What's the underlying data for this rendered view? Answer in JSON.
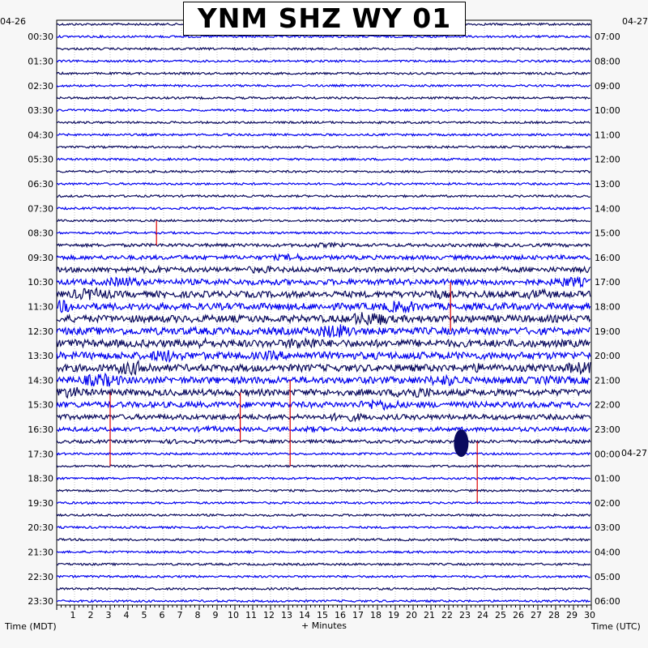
{
  "title": "YNM SHZ WY 01",
  "start_date": "04-26",
  "end_date": "04-27",
  "chart_data": {
    "type": "helicorder",
    "station": "YNM",
    "channel": "SHZ",
    "network": "WY",
    "location": "01",
    "xlabel": "+ Minutes",
    "left_axis_label": "Time (MDT)",
    "right_axis_label": "Time (UTC)",
    "x_ticks": [
      1,
      2,
      3,
      4,
      5,
      6,
      7,
      8,
      9,
      10,
      11,
      12,
      13,
      14,
      15,
      16,
      17,
      18,
      19,
      20,
      21,
      22,
      23,
      24,
      25,
      26,
      27,
      28,
      29,
      30
    ],
    "xlim": [
      0,
      30
    ],
    "left_time_labels": [
      "00:30",
      "01:30",
      "02:30",
      "03:30",
      "04:30",
      "05:30",
      "06:30",
      "07:30",
      "08:30",
      "09:30",
      "10:30",
      "11:30",
      "12:30",
      "13:30",
      "14:30",
      "15:30",
      "16:30",
      "17:30",
      "18:30",
      "19:30",
      "20:30",
      "21:30",
      "22:30",
      "23:30"
    ],
    "right_time_labels": [
      "07:00",
      "08:00",
      "09:00",
      "10:00",
      "11:00",
      "12:00",
      "13:00",
      "14:00",
      "15:00",
      "16:00",
      "17:00",
      "18:00",
      "19:00",
      "20:00",
      "21:00",
      "22:00",
      "23:00",
      "00:00",
      "01:00",
      "02:00",
      "03:00",
      "04:00",
      "05:00",
      "06:00"
    ],
    "rows": 48,
    "minutes_per_row": 30,
    "trace_colors": [
      "#0a0a5e",
      "#0000ee"
    ],
    "event_color": "#dd0000",
    "activity_window": "08:30-19:30",
    "grid": true
  }
}
